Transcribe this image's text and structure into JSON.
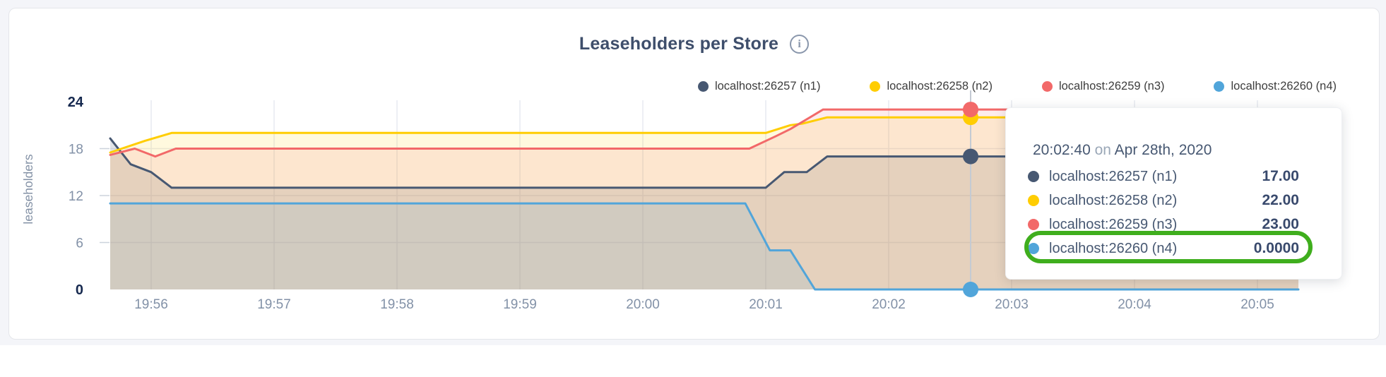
{
  "page": {
    "band_color": "#f4f5f9",
    "card_color": "#ffffff"
  },
  "header": {
    "title": "Leaseholders per Store",
    "info_icon": "i"
  },
  "legend": [
    {
      "label": "localhost:26257 (n1)",
      "color": "#475872"
    },
    {
      "label": "localhost:26258 (n2)",
      "color": "#ffcd02"
    },
    {
      "label": "localhost:26259 (n3)",
      "color": "#f26969"
    },
    {
      "label": "localhost:26260 (n4)",
      "color": "#51a5da"
    }
  ],
  "chart_data": {
    "type": "area",
    "title": "Leaseholders per Store",
    "ylabel": "leaseholders",
    "xlabel": "",
    "ylim": [
      0,
      24
    ],
    "y_ticks": [
      0,
      6,
      12,
      18,
      24
    ],
    "x_ticks": [
      "19:56",
      "19:57",
      "19:58",
      "19:59",
      "20:00",
      "20:01",
      "20:02",
      "20:03",
      "20:04",
      "20:05"
    ],
    "x_domain": [
      "19:55:40",
      "20:05:20"
    ],
    "grid": "on",
    "legend_position": "top-right",
    "series": [
      {
        "name": "localhost:26257 (n1)",
        "color": "#475872",
        "points": [
          [
            "19:55:40",
            19.3
          ],
          [
            "19:55:50",
            16
          ],
          [
            "19:56:00",
            15
          ],
          [
            "19:56:10",
            13
          ],
          [
            "20:01:00",
            13
          ],
          [
            "20:01:09",
            15
          ],
          [
            "20:01:20",
            15
          ],
          [
            "20:01:30",
            17
          ],
          [
            "20:05:20",
            17
          ]
        ]
      },
      {
        "name": "localhost:26258 (n2)",
        "color": "#ffcd02",
        "points": [
          [
            "19:55:40",
            17.5
          ],
          [
            "19:55:57",
            19
          ],
          [
            "19:56:10",
            20
          ],
          [
            "20:01:00",
            20
          ],
          [
            "20:01:12",
            21
          ],
          [
            "20:01:18",
            21.2
          ],
          [
            "20:01:30",
            22
          ],
          [
            "20:05:20",
            22
          ]
        ]
      },
      {
        "name": "localhost:26259 (n3)",
        "color": "#f26969",
        "points": [
          [
            "19:55:40",
            17.2
          ],
          [
            "19:55:52",
            18
          ],
          [
            "19:56:02",
            17
          ],
          [
            "19:56:12",
            18
          ],
          [
            "20:00:52",
            18
          ],
          [
            "20:01:05",
            19.6
          ],
          [
            "20:01:12",
            20.5
          ],
          [
            "20:01:28",
            23
          ],
          [
            "20:05:20",
            23
          ]
        ]
      },
      {
        "name": "localhost:26260 (n4)",
        "color": "#51a5da",
        "points": [
          [
            "19:55:40",
            11
          ],
          [
            "20:00:50",
            11
          ],
          [
            "20:01:02",
            5
          ],
          [
            "20:01:12",
            5
          ],
          [
            "20:01:24",
            0
          ],
          [
            "20:05:20",
            0
          ]
        ]
      }
    ],
    "hover": {
      "time": "20:02:40",
      "values": [
        17,
        22,
        23,
        0
      ]
    }
  },
  "tooltip": {
    "time": "20:02:40",
    "on_word": "on",
    "date": "Apr 28th, 2020",
    "rows": [
      {
        "label": "localhost:26257 (n1)",
        "value": "17.00",
        "color": "#475872",
        "highlighted": false
      },
      {
        "label": "localhost:26258 (n2)",
        "value": "22.00",
        "color": "#ffcd02",
        "highlighted": false
      },
      {
        "label": "localhost:26259 (n3)",
        "value": "23.00",
        "color": "#f26969",
        "highlighted": false
      },
      {
        "label": "localhost:26260 (n4)",
        "value": "0.0000",
        "color": "#51a5da",
        "highlighted": true
      }
    ]
  }
}
